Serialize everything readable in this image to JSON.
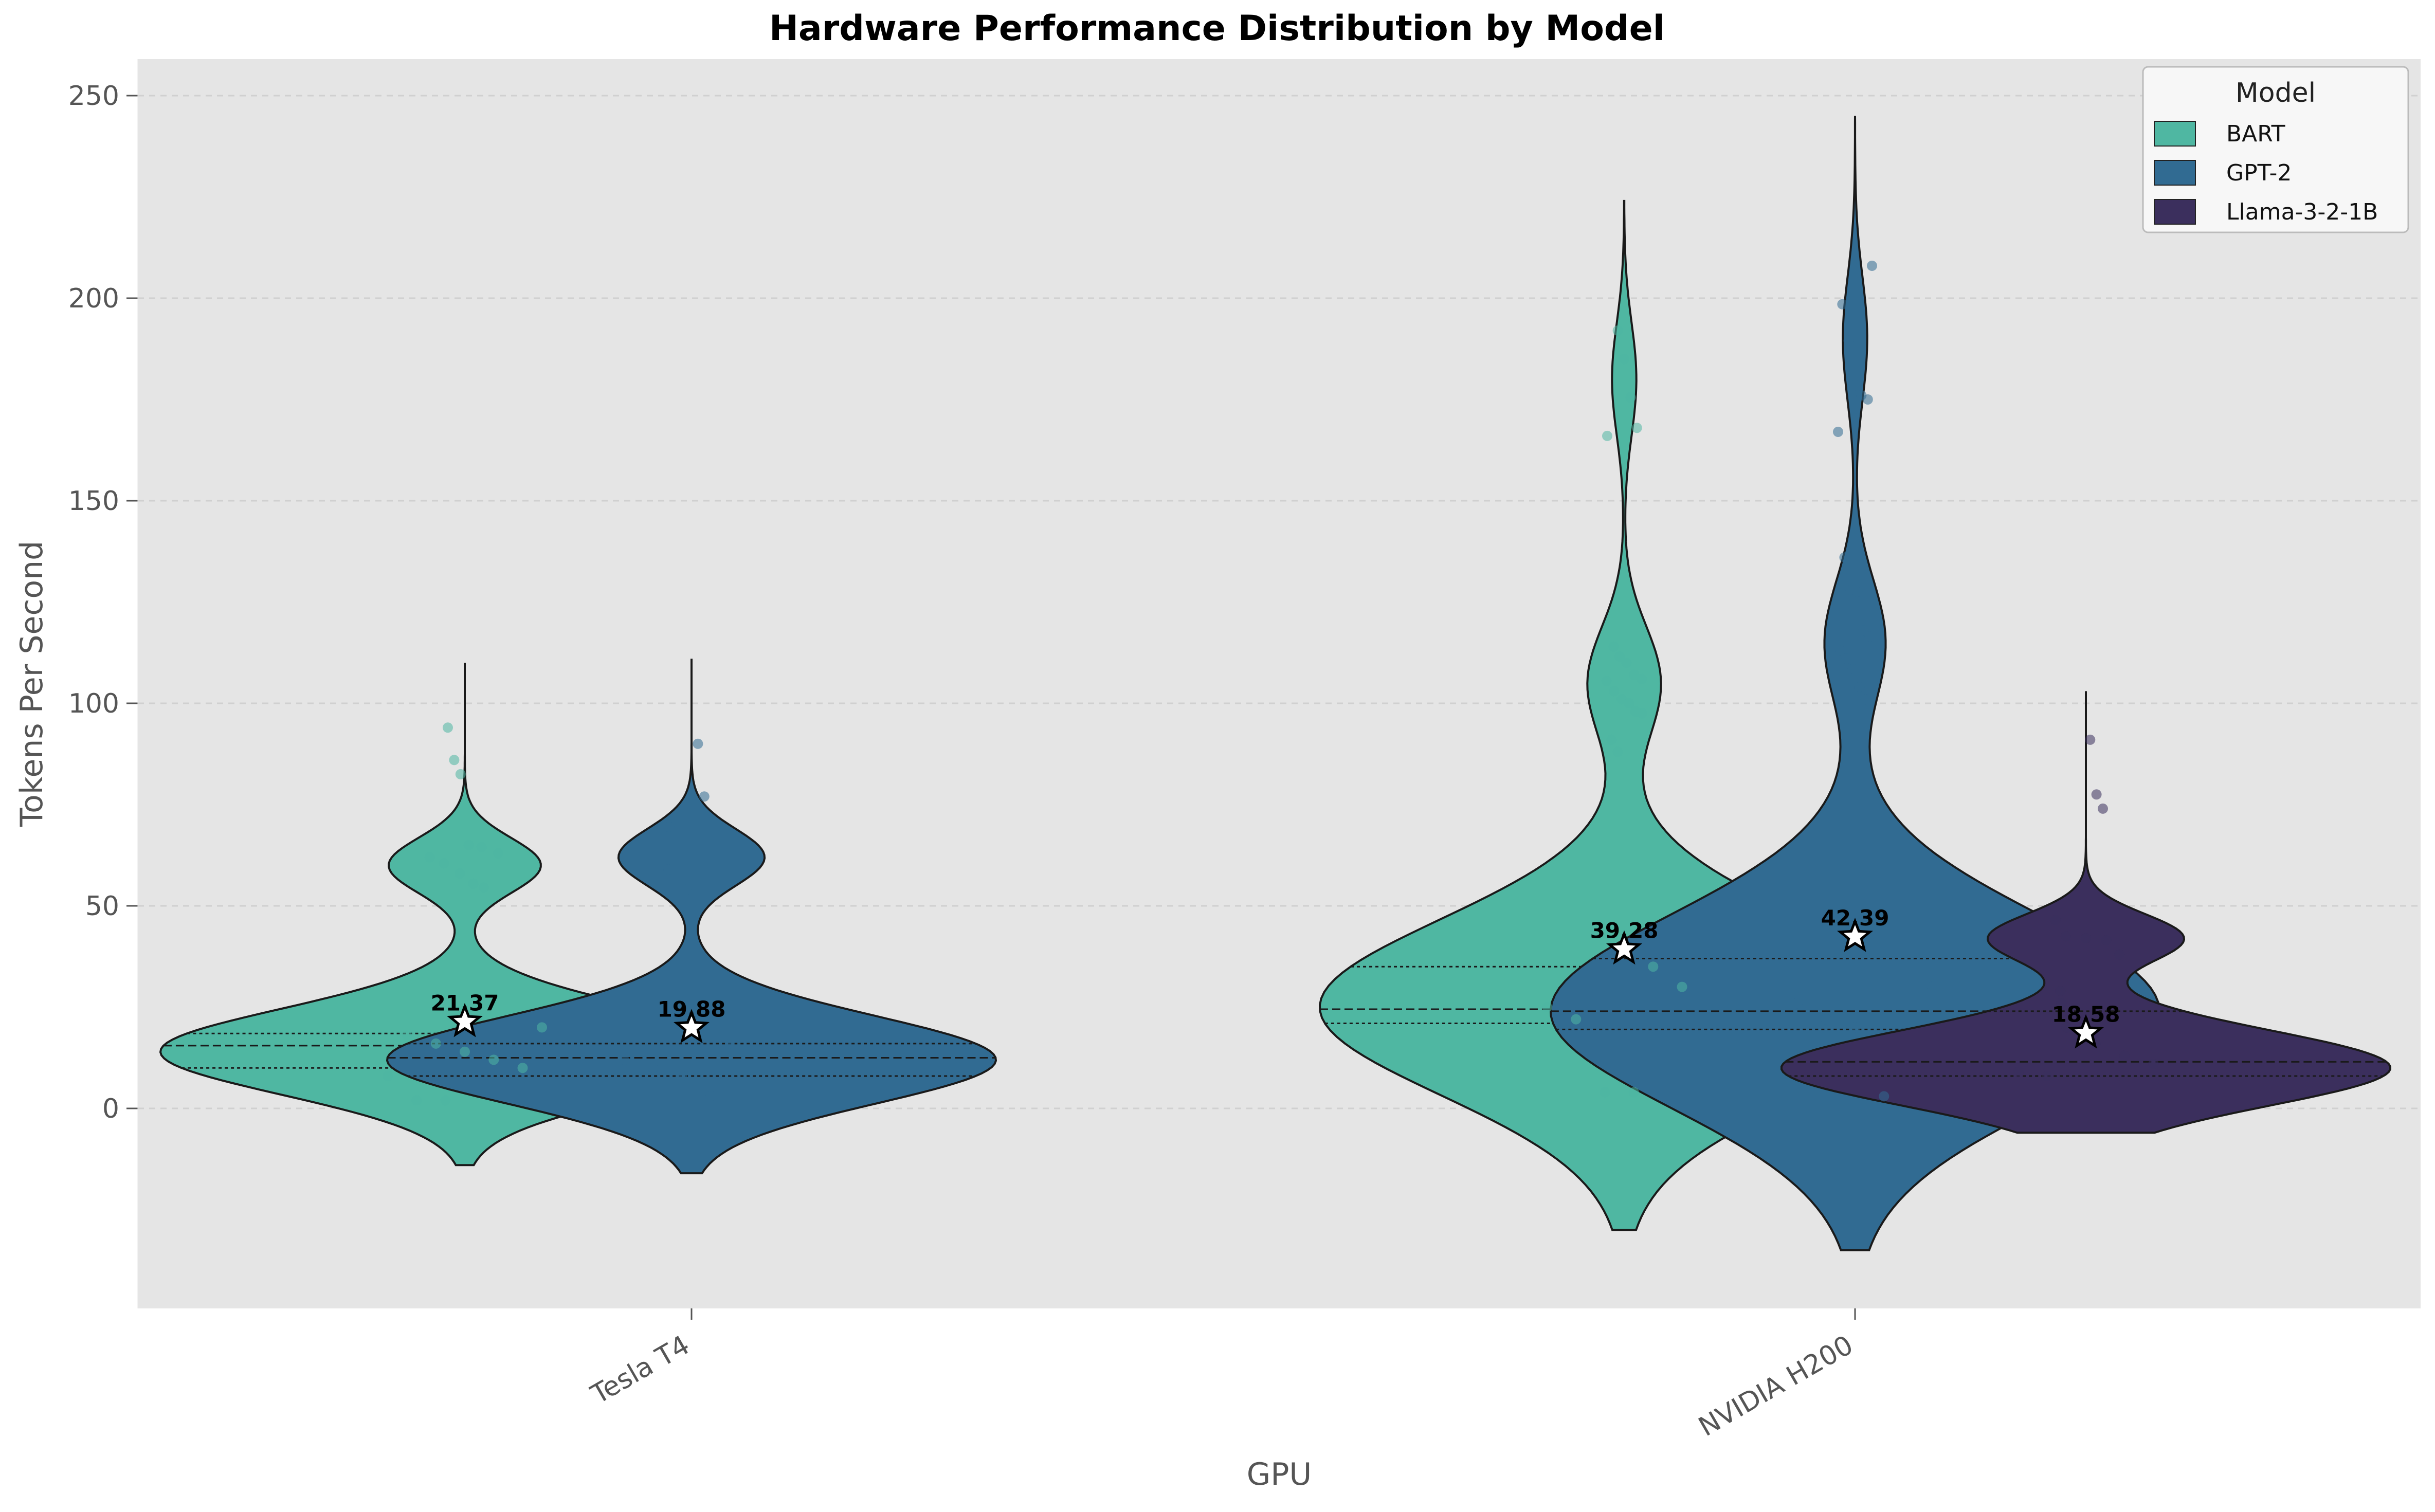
{
  "chart_data": {
    "type": "violin",
    "title": "Hardware Performance Distribution by Model",
    "xlabel": "GPU",
    "ylabel": "Tokens Per Second",
    "ylim": [
      -49,
      258
    ],
    "yticks": [
      0,
      50,
      100,
      150,
      200,
      250
    ],
    "grid": "horizontal dashed",
    "legend": {
      "title": "Model",
      "position": "top-right",
      "entries": [
        "BART",
        "GPT-2",
        "Llama-3-2-1B"
      ]
    },
    "categories": [
      "Tesla T4",
      "NVIDIA H200"
    ],
    "colors": {
      "BART": "#4fb7a2",
      "GPT-2": "#316b92",
      "Llama-3-2-1B": "#3b2f5d",
      "background": "#e5e5e5"
    },
    "series": [
      {
        "model": "BART",
        "gpu": "Tesla T4",
        "mean": 21.37,
        "mean_label": "21.37",
        "range": [
          -14,
          110
        ],
        "quartiles": [
          10,
          15.5,
          18.5
        ],
        "density_peaks": [
          {
            "y": 14,
            "w": 1.0
          },
          {
            "y": 60,
            "w": 0.25
          }
        ],
        "points": [
          94,
          86,
          82.5,
          65,
          64.5,
          63,
          62,
          60.5,
          58,
          55.5,
          54.5,
          20,
          18,
          16,
          14,
          12,
          10,
          8,
          2,
          2
        ]
      },
      {
        "model": "GPT-2",
        "gpu": "Tesla T4",
        "mean": 19.88,
        "mean_label": "19.88",
        "range": [
          -16,
          111
        ],
        "quartiles": [
          8,
          12.5,
          16
        ],
        "density_peaks": [
          {
            "y": 12,
            "w": 1.0
          },
          {
            "y": 62,
            "w": 0.24
          }
        ],
        "points": [
          90,
          77,
          69.5,
          59,
          54,
          18,
          16,
          14,
          12,
          10,
          8,
          3
        ]
      },
      {
        "model": "BART",
        "gpu": "NVIDIA H200",
        "mean": 39.28,
        "mean_label": "39.28",
        "range": [
          -30,
          224
        ],
        "quartiles": [
          21,
          24.5,
          35
        ],
        "density_peaks": [
          {
            "y": 25,
            "w": 1.0
          },
          {
            "y": 105,
            "w": 0.12
          },
          {
            "y": 180,
            "w": 0.04
          }
        ],
        "points": [
          192,
          185,
          175.5,
          168,
          166,
          114,
          111.5,
          110,
          107,
          106,
          105.5,
          103,
          101,
          100,
          98,
          97.5,
          91,
          88,
          40,
          35,
          30,
          25,
          22,
          4,
          4
        ]
      },
      {
        "model": "GPT-2",
        "gpu": "NVIDIA H200",
        "mean": 42.39,
        "mean_label": "42.39",
        "range": [
          -35,
          245
        ],
        "quartiles": [
          19.5,
          24,
          37
        ],
        "density_peaks": [
          {
            "y": 24,
            "w": 1.0
          },
          {
            "y": 115,
            "w": 0.1
          },
          {
            "y": 190,
            "w": 0.04
          }
        ],
        "points": [
          208,
          198.5,
          189.5,
          178.5,
          176,
          175,
          167,
          136,
          128,
          127.5,
          118,
          116.5,
          113,
          111,
          108.5,
          104,
          101,
          30,
          26,
          22,
          20,
          3
        ]
      },
      {
        "model": "Llama-3-2-1B",
        "gpu": "NVIDIA H200",
        "mean": 18.58,
        "mean_label": "18.58",
        "range": [
          -6,
          103
        ],
        "quartiles": [
          8,
          11.5,
          24
        ],
        "density_peaks": [
          {
            "y": 10,
            "w": 1.0
          },
          {
            "y": 42,
            "w": 0.32
          }
        ],
        "points": [
          91,
          77.5,
          74,
          46.5,
          42.5,
          42,
          41.5,
          38,
          29,
          26,
          20,
          16,
          13,
          11,
          9,
          8
        ]
      }
    ]
  }
}
